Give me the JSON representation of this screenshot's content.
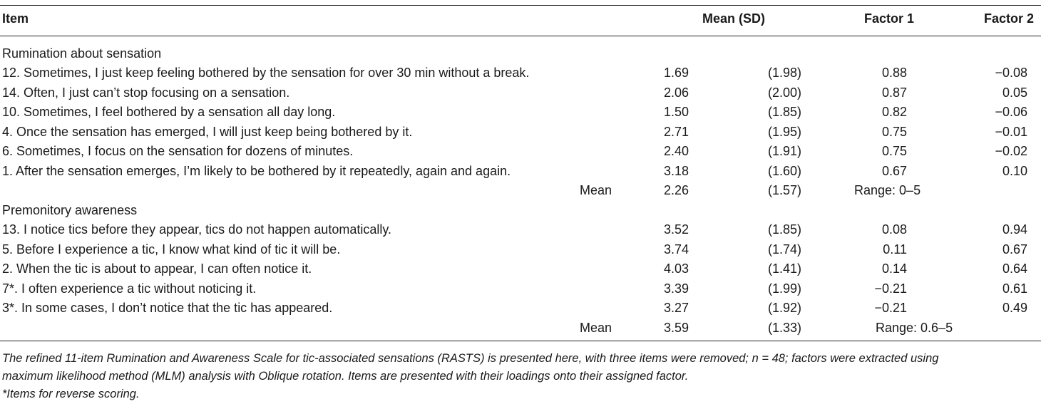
{
  "header": {
    "item": "Item",
    "mean_sd": "Mean (SD)",
    "factor1": "Factor 1",
    "factor2": "Factor 2"
  },
  "sections": [
    {
      "title": "Rumination about sensation",
      "rows": [
        {
          "item": "12. Sometimes, I just keep feeling bothered by the sensation for over 30 min without a break.",
          "mean": "1.69",
          "sd": "(1.98)",
          "f1": "0.88",
          "f2": "−0.08"
        },
        {
          "item": "14. Often, I just can’t stop focusing on a sensation.",
          "mean": "2.06",
          "sd": "(2.00)",
          "f1": "0.87",
          "f2": "0.05"
        },
        {
          "item": "10. Sometimes, I feel bothered by a sensation all day long.",
          "mean": "1.50",
          "sd": "(1.85)",
          "f1": "0.82",
          "f2": "−0.06"
        },
        {
          "item": "4. Once the sensation has emerged, I will just keep being bothered by it.",
          "mean": "2.71",
          "sd": "(1.95)",
          "f1": "0.75",
          "f2": "−0.01"
        },
        {
          "item": "6. Sometimes, I focus on the sensation for dozens of minutes.",
          "mean": "2.40",
          "sd": "(1.91)",
          "f1": "0.75",
          "f2": "−0.02"
        },
        {
          "item": "1. After the sensation emerges, I’m likely to be bothered by it repeatedly, again and again.",
          "mean": "3.18",
          "sd": "(1.60)",
          "f1": "0.67",
          "f2": "0.10"
        }
      ],
      "summary": {
        "label": "Mean",
        "mean": "2.26",
        "sd": "(1.57)",
        "range": "Range: 0–5"
      }
    },
    {
      "title": "Premonitory awareness",
      "rows": [
        {
          "item": "13. I notice tics before they appear, tics do not happen automatically.",
          "mean": "3.52",
          "sd": "(1.85)",
          "f1": "0.08",
          "f2": "0.94"
        },
        {
          "item": "5. Before I experience a tic, I know what kind of tic it will be.",
          "mean": "3.74",
          "sd": "(1.74)",
          "f1": "0.11",
          "f2": "0.67"
        },
        {
          "item": "2. When the tic is about to appear, I can often notice it.",
          "mean": "4.03",
          "sd": "(1.41)",
          "f1": "0.14",
          "f2": "0.64"
        },
        {
          "item": "7*. I often experience a tic without noticing it.",
          "mean": "3.39",
          "sd": "(1.99)",
          "f1": "−0.21",
          "f2": "0.61"
        },
        {
          "item": "3*. In some cases, I don’t notice that the tic has appeared.",
          "mean": "3.27",
          "sd": "(1.92)",
          "f1": "−0.21",
          "f2": "0.49"
        }
      ],
      "summary": {
        "label": "Mean",
        "mean": "3.59",
        "sd": "(1.33)",
        "range": "Range: 0.6–5"
      }
    }
  ],
  "footnotes": {
    "note1": "The refined 11-item Rumination and Awareness Scale for tic-associated sensations (RASTS) is presented here, with three items were removed; n = 48; factors were extracted using",
    "note2": "maximum likelihood method (MLM) analysis with Oblique rotation. Items are presented with their loadings onto their assigned factor.",
    "note3": "*Items for reverse scoring."
  }
}
